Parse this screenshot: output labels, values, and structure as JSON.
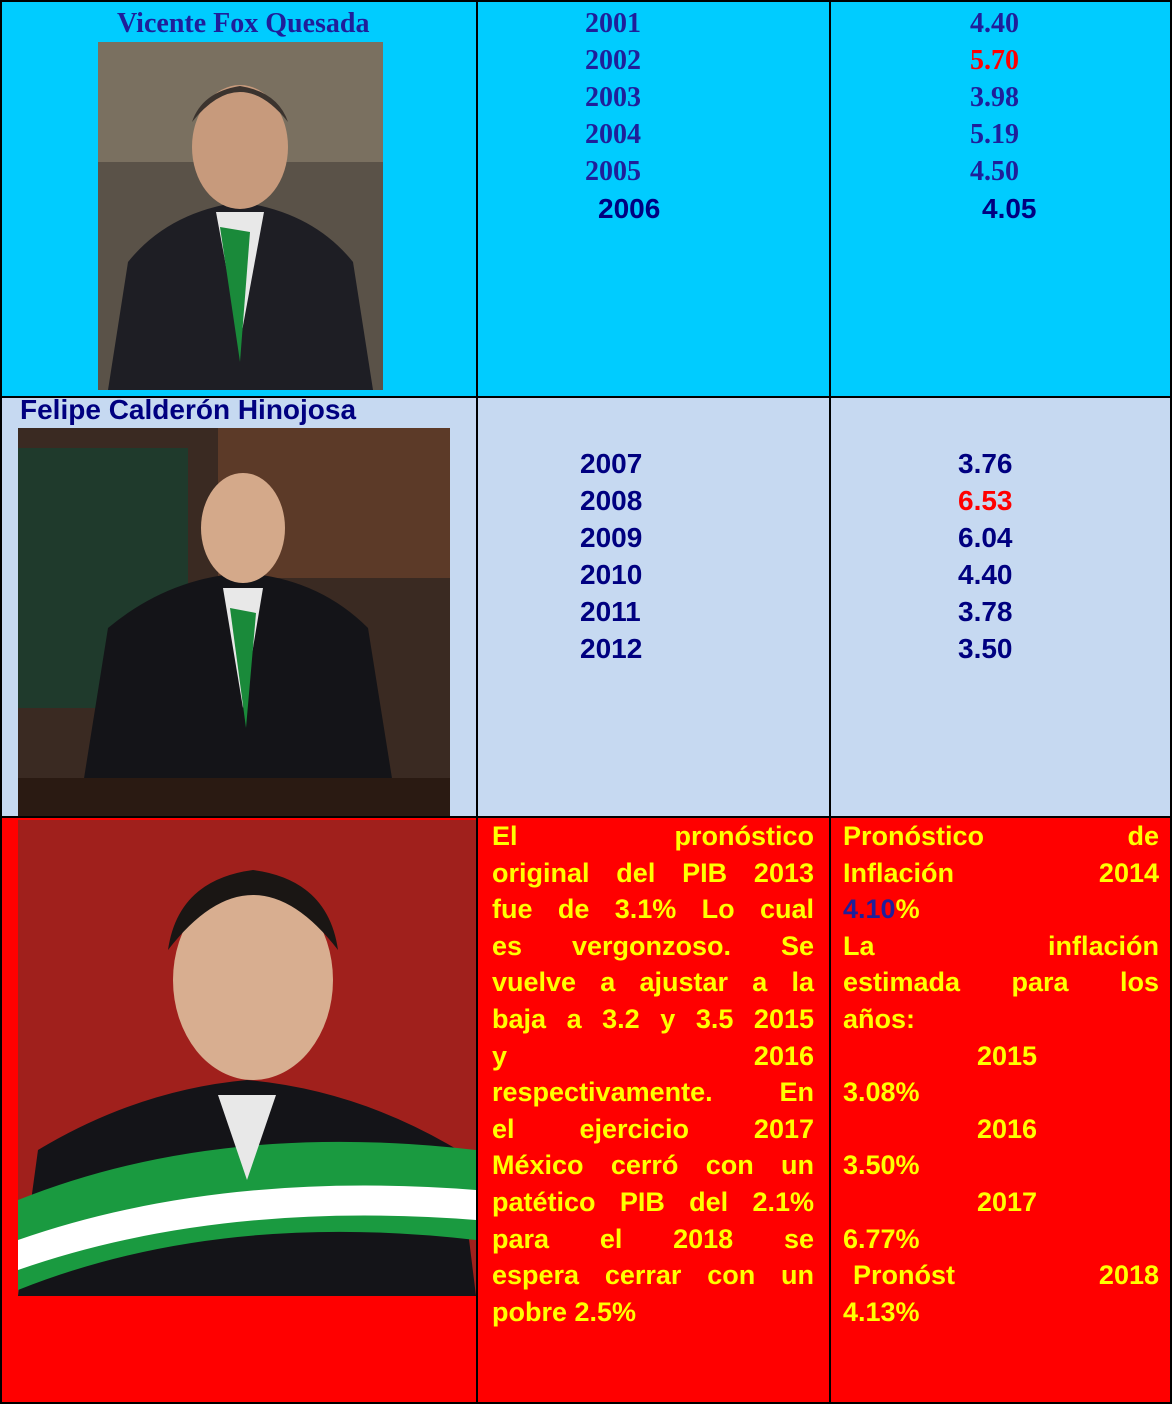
{
  "rows": [
    {
      "name": "Vicente Fox Quesada",
      "years": [
        "2001",
        "2002",
        "2003",
        "2004",
        "2005",
        "2006"
      ],
      "values": [
        "4.40",
        "5.70",
        "3.98",
        "5.19",
        "4.50",
        "4.05"
      ],
      "highlight": [
        1
      ]
    },
    {
      "name": "Felipe Calderón Hinojosa",
      "years": [
        "2007",
        "2008",
        "2009",
        "2010",
        "2011",
        "2012"
      ],
      "values": [
        "3.76",
        "6.53",
        "6.04",
        "4.40",
        "3.78",
        "3.50"
      ],
      "highlight": [
        1
      ]
    }
  ],
  "pib_text": [
    "El pronóstico",
    "original del PIB 2013",
    "fue de 3.1% Lo cual",
    "es vergonzoso. Se",
    "vuelve a ajustar a la",
    "baja a 3.2 y 3.5 2015",
    "y 2016",
    "respectivamente. En",
    "el ejercicio 2017",
    "México cerró con un",
    "patético PIB del 2.1%",
    "para el 2018 se",
    "espera cerrar con un",
    "pobre 2.5%"
  ],
  "inflation": {
    "title_lines": [
      "Pronóstico de",
      "Inflación 2014"
    ],
    "value": "4.10",
    "unit": "%",
    "intro_lines": [
      "La inflación",
      "estimada para los",
      "años:"
    ],
    "years": [
      {
        "year": "2015",
        "value": "3.08%"
      },
      {
        "year": "2016",
        "value": "3.50%"
      },
      {
        "year": "2017",
        "value": "6.77%"
      }
    ],
    "last_label": "Pronóst 2018",
    "last_value": "4.13%"
  }
}
